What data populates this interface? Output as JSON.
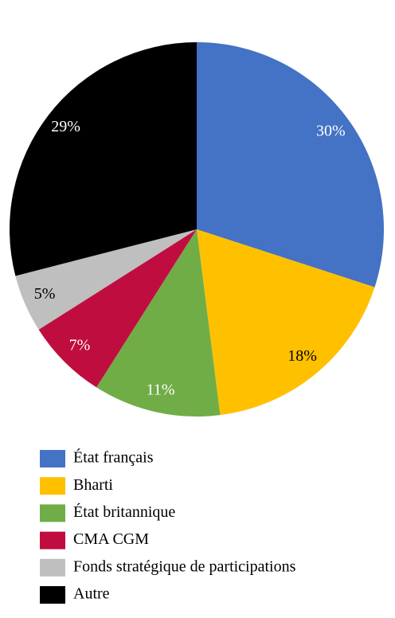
{
  "chart_data": {
    "type": "pie",
    "categories": [
      "État français",
      "Bharti",
      "État britannique",
      "CMA CGM",
      "Fonds stratégique de participations",
      "Autre"
    ],
    "values": [
      30,
      18,
      11,
      7,
      5,
      29
    ],
    "value_labels": [
      "30%",
      "18%",
      "11%",
      "7%",
      "5%",
      "29%"
    ],
    "colors": [
      "#4472c4",
      "#ffc000",
      "#70ad47",
      "#c00d3f",
      "#bfbfbf",
      "#000000"
    ]
  }
}
